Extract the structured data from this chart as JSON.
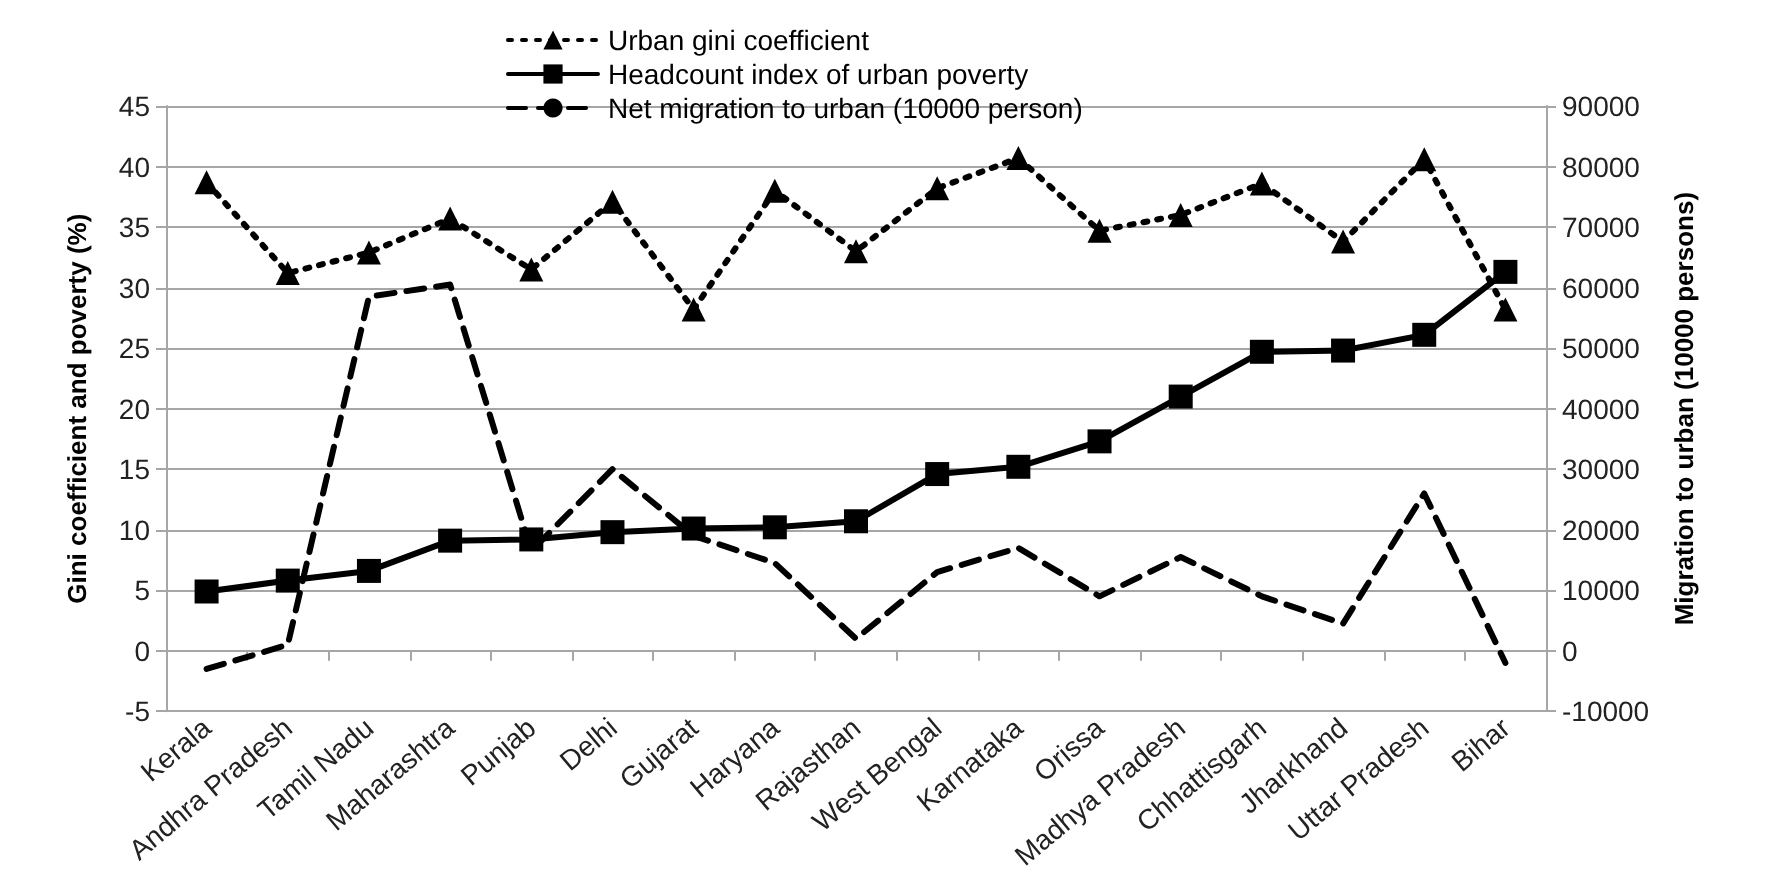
{
  "chart_data": {
    "type": "line",
    "categories": [
      "Kerala",
      "Andhra Pradesh",
      "Tamil Nadu",
      "Maharashtra",
      "Punjab",
      "Delhi",
      "Gujarat",
      "Haryana",
      "Rajasthan",
      "West Bengal",
      "Karnataka",
      "Orissa",
      "Madhya Pradesh",
      "Chhattisgarh",
      "Jharkhand",
      "Uttar Pradesh",
      "Bihar"
    ],
    "series": [
      {
        "name": "Urban gini coefficient",
        "color": "#000000",
        "marker": "triangle",
        "line_style": "dotted",
        "values": [
          38.7,
          31.2,
          32.9,
          35.7,
          31.5,
          37.1,
          28.2,
          38,
          33,
          38.2,
          40.7,
          34.7,
          36,
          38.6,
          33.8,
          40.6,
          28.2
        ]
      },
      {
        "name": "Headcount index of urban poverty",
        "color": "#000000",
        "marker": "square",
        "line_style": "solid",
        "values": [
          4.9,
          5.8,
          6.6,
          9.1,
          9.2,
          9.8,
          10.1,
          10.2,
          10.7,
          14.6,
          15.2,
          17.3,
          21.0,
          24.7,
          24.8,
          26.1,
          31.3
        ]
      },
      {
        "name": "Net migration to urban (10000 person)",
        "color": "#000000",
        "marker": "none",
        "line_style": "dashed",
        "axis": "y2",
        "values": [
          -3000,
          1000,
          58500,
          60500,
          16500,
          30000,
          19000,
          14500,
          2000,
          13000,
          17000,
          9000,
          15500,
          9000,
          4500,
          26000,
          -2000
        ]
      }
    ],
    "ylabel": "Gini coefficient and poverty (%)",
    "y2label": "Migration to urban (10000 persons)",
    "ylim": [
      -5,
      45
    ],
    "yticks": [
      -5,
      0,
      5,
      10,
      15,
      20,
      25,
      30,
      35,
      40,
      45
    ],
    "y2lim": [
      -10000,
      90000
    ],
    "y2ticks": [
      -10000,
      0,
      10000,
      20000,
      30000,
      40000,
      50000,
      60000,
      70000,
      80000,
      90000
    ],
    "grid": "y",
    "legend": "top"
  }
}
